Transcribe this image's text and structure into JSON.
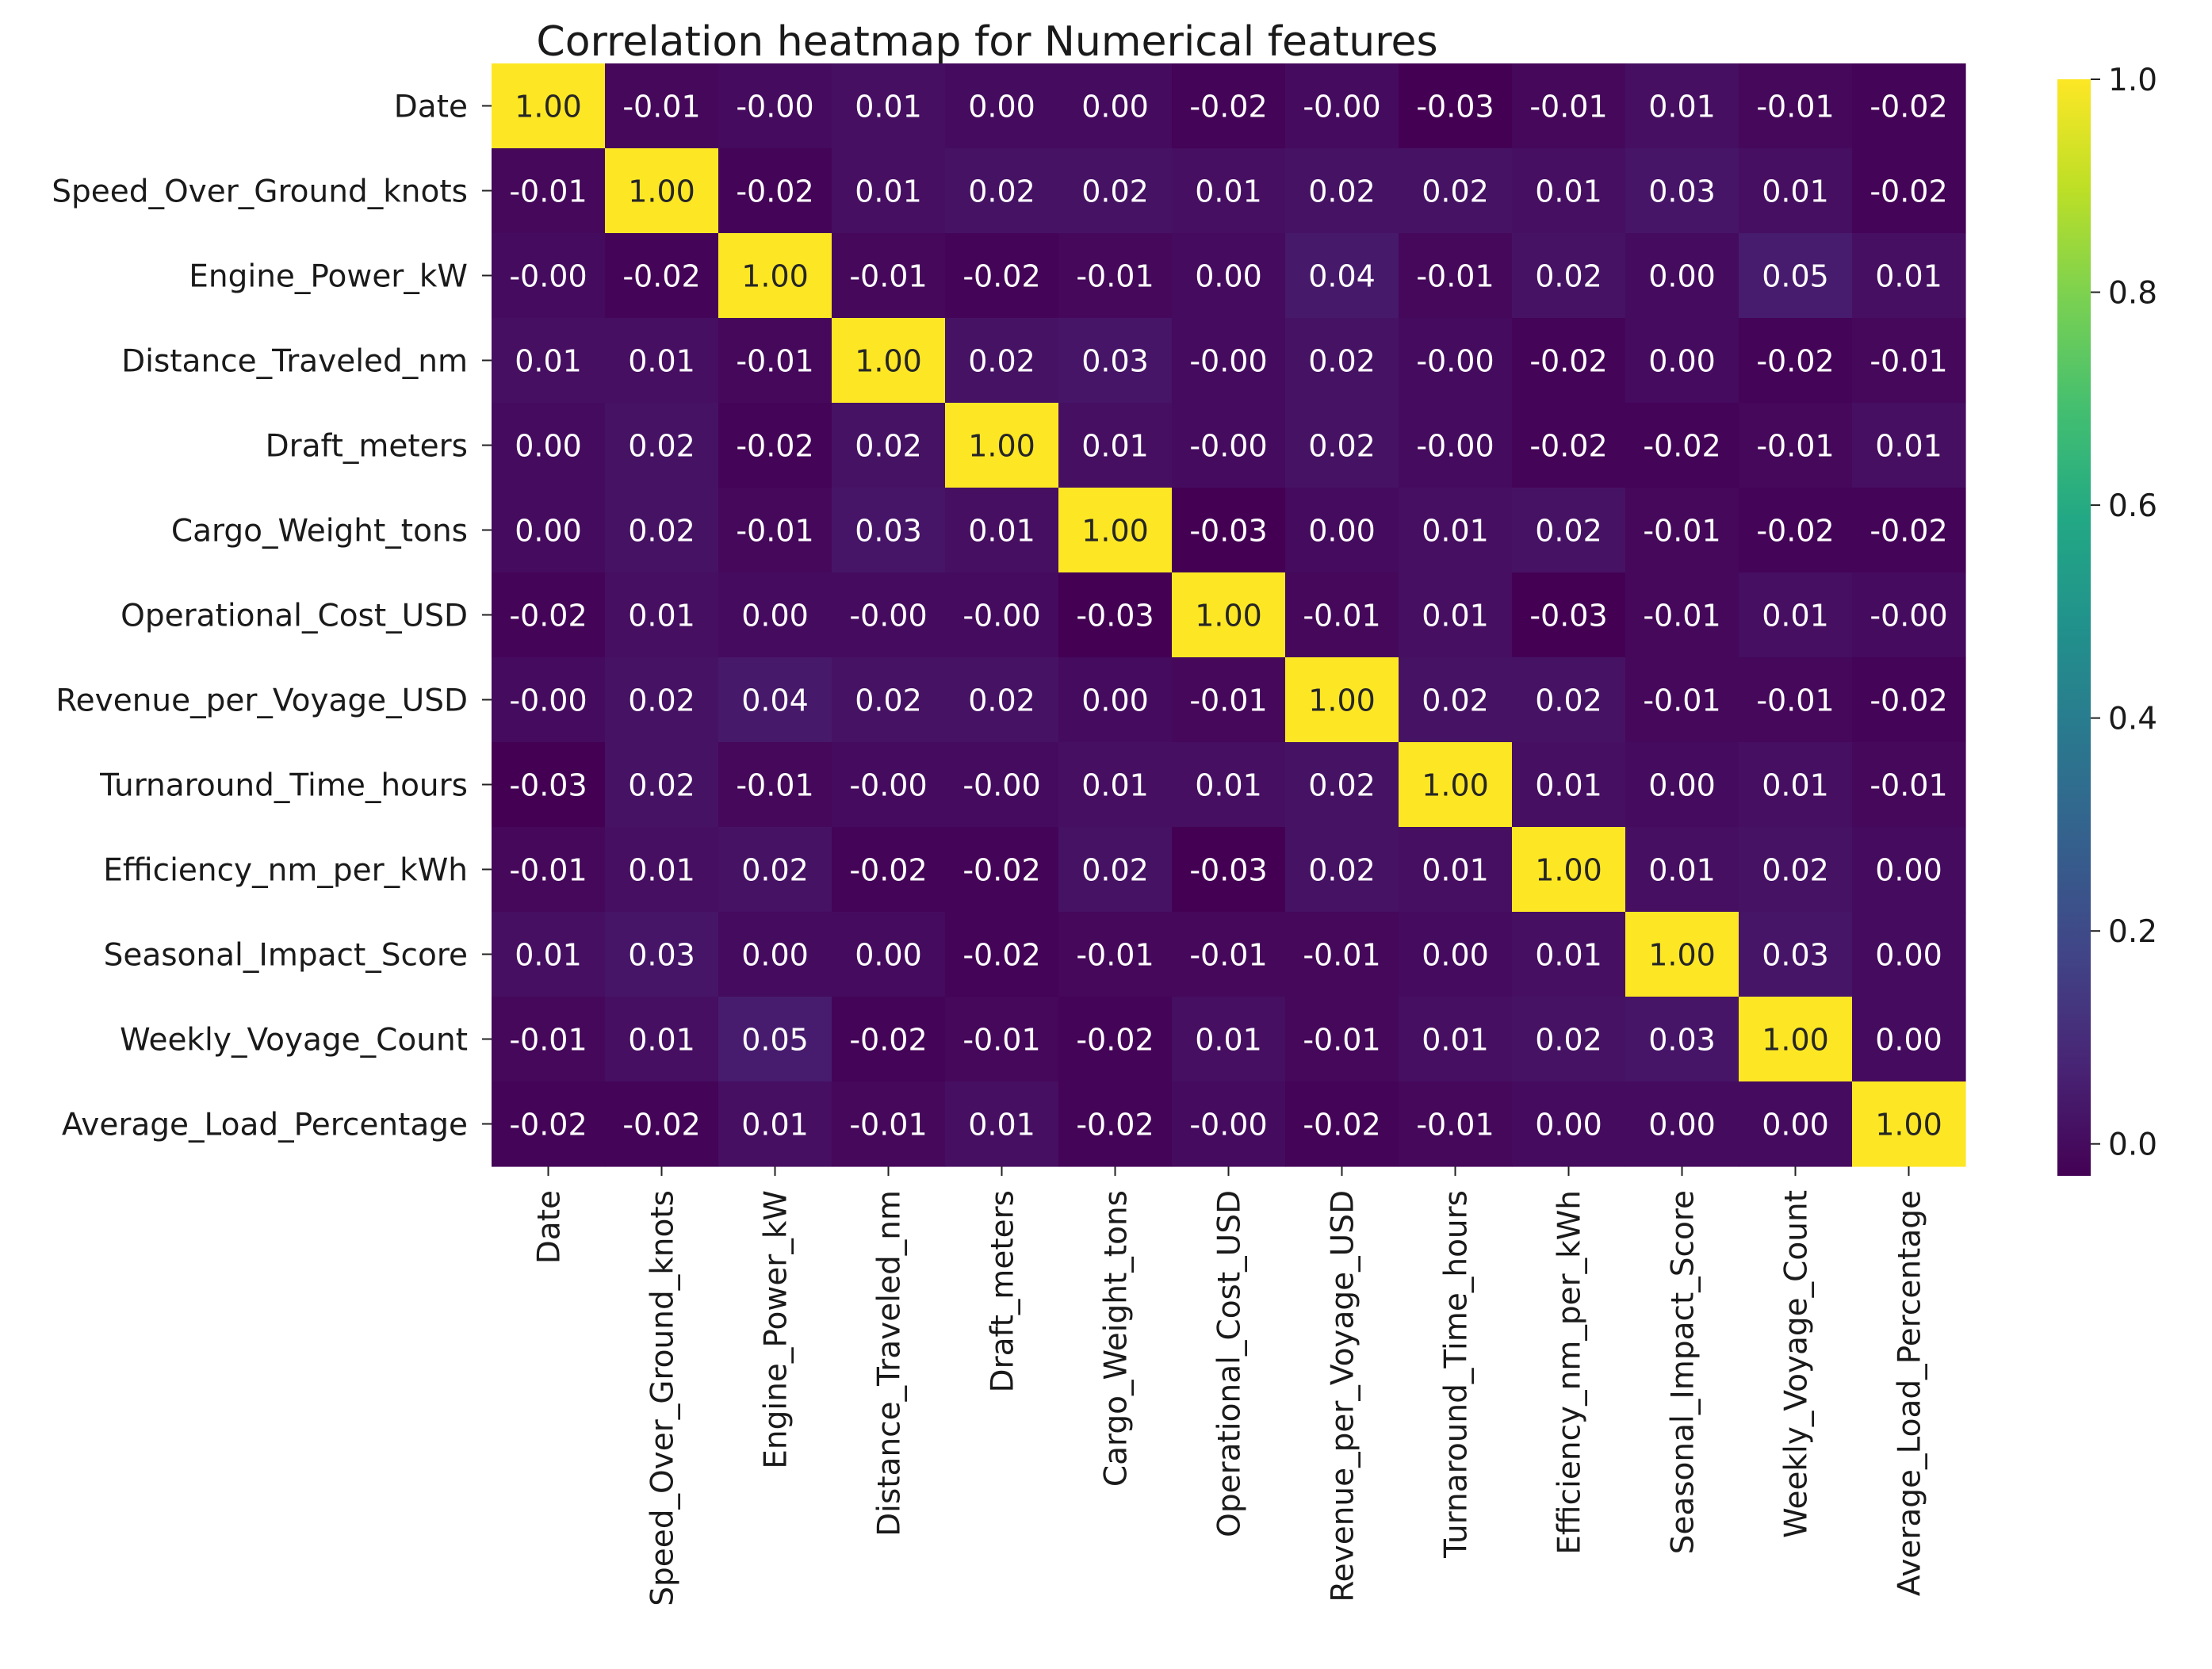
{
  "chart_data": {
    "type": "heatmap",
    "title": "Correlation heatmap for Numerical features",
    "xlabel": "",
    "ylabel": "",
    "labels": [
      "Date",
      "Speed_Over_Ground_knots",
      "Engine_Power_kW",
      "Distance_Traveled_nm",
      "Draft_meters",
      "Cargo_Weight_tons",
      "Operational_Cost_USD",
      "Revenue_per_Voyage_USD",
      "Turnaround_Time_hours",
      "Efficiency_nm_per_kWh",
      "Seasonal_Impact_Score",
      "Weekly_Voyage_Count",
      "Average_Load_Percentage"
    ],
    "matrix": [
      [
        1.0,
        -0.01,
        -0.0,
        0.01,
        0.0,
        0.0,
        -0.02,
        -0.0,
        -0.03,
        -0.01,
        0.01,
        -0.01,
        -0.02
      ],
      [
        -0.01,
        1.0,
        -0.02,
        0.01,
        0.02,
        0.02,
        0.01,
        0.02,
        0.02,
        0.01,
        0.03,
        0.01,
        -0.02
      ],
      [
        -0.0,
        -0.02,
        1.0,
        -0.01,
        -0.02,
        -0.01,
        0.0,
        0.04,
        -0.01,
        0.02,
        0.0,
        0.05,
        0.01
      ],
      [
        0.01,
        0.01,
        -0.01,
        1.0,
        0.02,
        0.03,
        -0.0,
        0.02,
        -0.0,
        -0.02,
        0.0,
        -0.02,
        -0.01
      ],
      [
        0.0,
        0.02,
        -0.02,
        0.02,
        1.0,
        0.01,
        -0.0,
        0.02,
        -0.0,
        -0.02,
        -0.02,
        -0.01,
        0.01
      ],
      [
        0.0,
        0.02,
        -0.01,
        0.03,
        0.01,
        1.0,
        -0.03,
        0.0,
        0.01,
        0.02,
        -0.01,
        -0.02,
        -0.02
      ],
      [
        -0.02,
        0.01,
        0.0,
        -0.0,
        -0.0,
        -0.03,
        1.0,
        -0.01,
        0.01,
        -0.03,
        -0.01,
        0.01,
        -0.0
      ],
      [
        -0.0,
        0.02,
        0.04,
        0.02,
        0.02,
        0.0,
        -0.01,
        1.0,
        0.02,
        0.02,
        -0.01,
        -0.01,
        -0.02
      ],
      [
        -0.03,
        0.02,
        -0.01,
        -0.0,
        -0.0,
        0.01,
        0.01,
        0.02,
        1.0,
        0.01,
        0.0,
        0.01,
        -0.01
      ],
      [
        -0.01,
        0.01,
        0.02,
        -0.02,
        -0.02,
        0.02,
        -0.03,
        0.02,
        0.01,
        1.0,
        0.01,
        0.02,
        0.0
      ],
      [
        0.01,
        0.03,
        0.0,
        0.0,
        -0.02,
        -0.01,
        -0.01,
        -0.01,
        0.0,
        0.01,
        1.0,
        0.03,
        0.0
      ],
      [
        -0.01,
        0.01,
        0.05,
        -0.02,
        -0.01,
        -0.02,
        0.01,
        -0.01,
        0.01,
        0.02,
        0.03,
        1.0,
        0.0
      ],
      [
        -0.02,
        -0.02,
        0.01,
        -0.01,
        0.01,
        -0.02,
        -0.0,
        -0.02,
        -0.01,
        0.0,
        0.0,
        0.0,
        1.0
      ]
    ],
    "annotation_format": "0.00",
    "colormap": "viridis",
    "vmin": -0.03,
    "vmax": 1.0,
    "colorbar_ticks": [
      "0.0",
      "0.2",
      "0.4",
      "0.6",
      "0.8",
      "1.0"
    ],
    "legend": "right colorbar"
  }
}
